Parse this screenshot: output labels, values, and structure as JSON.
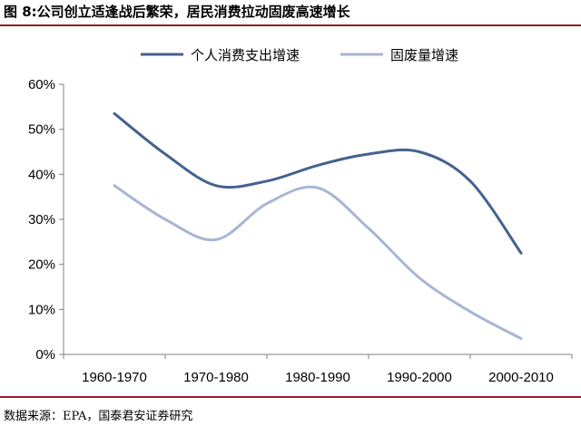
{
  "figure": {
    "title": "图 8:公司创立适逢战后繁荣，居民消费拉动固废高速增长",
    "source": "数据来源：EPA，国泰君安证券研究"
  },
  "chart_data": {
    "type": "line",
    "title": "",
    "xlabel": "",
    "ylabel": "",
    "categories": [
      "1960-1970",
      "1970-1980",
      "1980-1990",
      "1990-2000",
      "2000-2010"
    ],
    "x": [
      0,
      0.5,
      1,
      1.5,
      2,
      2.5,
      3,
      3.5,
      4
    ],
    "series": [
      {
        "name": "个人消费支出增速",
        "color": "#44628f",
        "values": [
          53.5,
          44.5,
          37.5,
          38.5,
          42,
          44.5,
          45,
          38.5,
          22.5
        ]
      },
      {
        "name": "固废量增速",
        "color": "#a9b5d3",
        "values": [
          37.5,
          30,
          25.5,
          33.5,
          37,
          28,
          17,
          9.5,
          3.5
        ]
      }
    ],
    "ylim": [
      0,
      60
    ],
    "yticks": [
      0,
      10,
      20,
      30,
      40,
      50,
      60
    ],
    "ytick_labels": [
      "0%",
      "10%",
      "20%",
      "30%",
      "40%",
      "50%",
      "60%"
    ],
    "smooth": true,
    "grid": false,
    "legend_position": "top"
  }
}
